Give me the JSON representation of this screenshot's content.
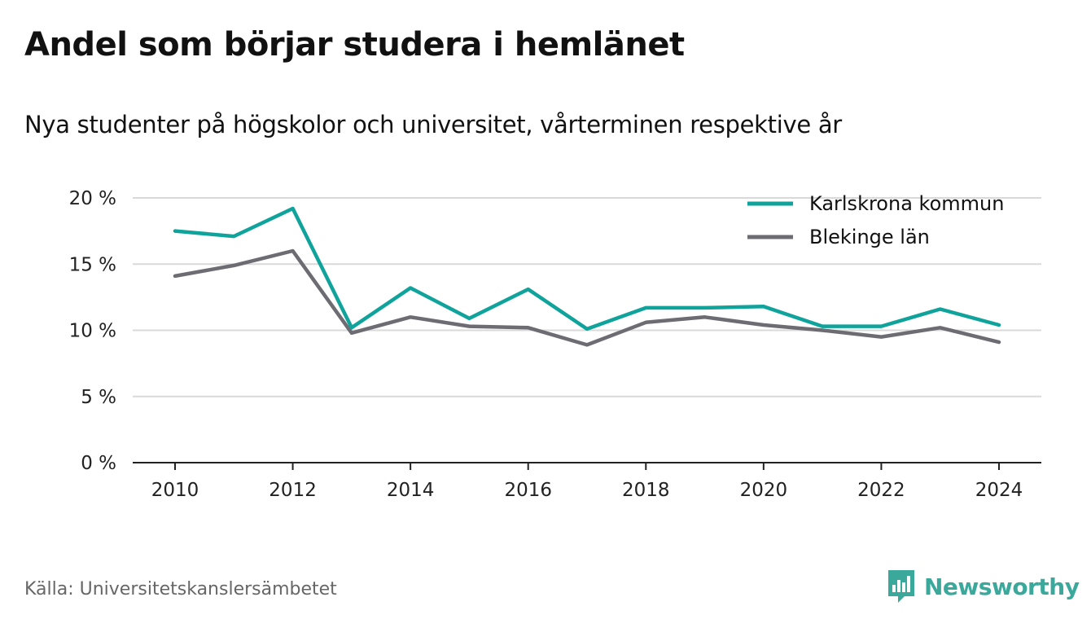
{
  "header": {
    "title": "Andel som börjar studera i hemlänet",
    "subtitle": "Nya studenter på högskolor och universitet, vårterminen respektive år"
  },
  "footer": {
    "source": "Källa: Universitetskanslersämbetet",
    "brand": "Newsworthy"
  },
  "colors": {
    "karlskrona": "#0fa39b",
    "blekinge": "#6d6c73",
    "grid": "#d9d9d9",
    "axis": "#222222",
    "brand": "#3aa89b"
  },
  "chart_data": {
    "type": "line",
    "title": "Andel som börjar studera i hemlänet",
    "subtitle": "Nya studenter på högskolor och universitet, vårterminen respektive år",
    "xlabel": "",
    "ylabel": "",
    "x": [
      2010,
      2011,
      2012,
      2013,
      2014,
      2015,
      2016,
      2017,
      2018,
      2019,
      2020,
      2021,
      2022,
      2023,
      2024
    ],
    "x_ticks": [
      2010,
      2012,
      2014,
      2016,
      2018,
      2020,
      2022,
      2024
    ],
    "y_ticks": [
      0,
      5,
      10,
      15,
      20
    ],
    "y_tick_labels": [
      "0 %",
      "5 %",
      "10 %",
      "15 %",
      "20 %"
    ],
    "ylim": [
      0,
      20
    ],
    "grid": true,
    "legend_position": "top-right",
    "series": [
      {
        "name": "Karlskrona kommun",
        "color": "#0fa39b",
        "values": [
          17.5,
          17.1,
          19.2,
          10.2,
          13.2,
          10.9,
          13.1,
          10.1,
          11.7,
          11.7,
          11.8,
          10.3,
          10.3,
          11.6,
          10.4
        ]
      },
      {
        "name": "Blekinge län",
        "color": "#6d6c73",
        "values": [
          14.1,
          14.9,
          16.0,
          9.8,
          11.0,
          10.3,
          10.2,
          8.9,
          10.6,
          11.0,
          10.4,
          10.0,
          9.5,
          10.2,
          9.1
        ]
      }
    ]
  }
}
